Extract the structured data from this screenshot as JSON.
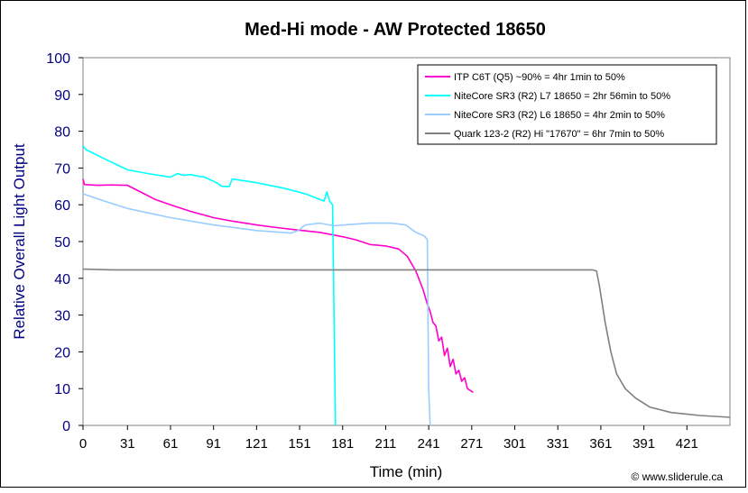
{
  "chart_data": {
    "type": "line",
    "title": "Med-Hi mode - AW Protected 18650",
    "xlabel": "Time (min)",
    "ylabel": "Relative Overall Light Output",
    "xlim": [
      0,
      451
    ],
    "ylim": [
      0,
      100
    ],
    "x_ticks": [
      0,
      31,
      61,
      91,
      121,
      151,
      181,
      211,
      241,
      271,
      301,
      331,
      361,
      391,
      421
    ],
    "y_ticks": [
      0,
      10,
      20,
      30,
      40,
      50,
      60,
      70,
      80,
      90,
      100
    ],
    "grid": false,
    "legend_position": "top-right",
    "copyright": "© www.sliderule.ca",
    "series": [
      {
        "name": "ITP C6T (Q5) ~90% = 4hr 1min to 50%",
        "color": "#ff00cc",
        "points": [
          [
            0,
            67
          ],
          [
            1,
            65.5
          ],
          [
            10,
            65.3
          ],
          [
            20,
            65.4
          ],
          [
            31,
            65.3
          ],
          [
            40,
            63.5
          ],
          [
            50,
            61.5
          ],
          [
            61,
            60
          ],
          [
            75,
            58.2
          ],
          [
            91,
            56.5
          ],
          [
            105,
            55.5
          ],
          [
            121,
            54.5
          ],
          [
            135,
            53.8
          ],
          [
            151,
            53.1
          ],
          [
            165,
            52.5
          ],
          [
            181,
            51.3
          ],
          [
            190,
            50.5
          ],
          [
            200,
            49.2
          ],
          [
            211,
            48.8
          ],
          [
            220,
            48
          ],
          [
            226,
            46
          ],
          [
            232,
            42
          ],
          [
            237,
            37
          ],
          [
            240,
            33
          ],
          [
            242,
            31
          ],
          [
            244,
            28
          ],
          [
            246,
            27
          ],
          [
            248,
            23
          ],
          [
            250,
            24
          ],
          [
            252,
            19
          ],
          [
            254,
            21
          ],
          [
            256,
            16
          ],
          [
            258,
            18
          ],
          [
            260,
            14
          ],
          [
            262,
            15
          ],
          [
            264,
            12
          ],
          [
            266,
            13
          ],
          [
            268,
            10
          ],
          [
            270,
            9.5
          ],
          [
            272,
            9
          ]
        ]
      },
      {
        "name": "NiteCore SR3 (R2) L7 18650 = 2hr 56min to 50%",
        "color": "#00ffff",
        "points": [
          [
            0,
            76
          ],
          [
            2,
            75
          ],
          [
            15,
            72.5
          ],
          [
            31,
            69.5
          ],
          [
            45,
            68.5
          ],
          [
            61,
            67.5
          ],
          [
            66,
            68.5
          ],
          [
            70,
            68
          ],
          [
            75,
            68.2
          ],
          [
            80,
            67.8
          ],
          [
            85,
            67.5
          ],
          [
            93,
            66
          ],
          [
            97,
            65
          ],
          [
            102,
            65
          ],
          [
            104,
            67
          ],
          [
            121,
            66
          ],
          [
            140,
            64.5
          ],
          [
            155,
            63
          ],
          [
            168,
            61
          ],
          [
            170,
            63.5
          ],
          [
            172,
            61
          ],
          [
            174,
            60
          ],
          [
            175,
            30
          ],
          [
            176,
            0
          ]
        ]
      },
      {
        "name": "NiteCore SR3 (R2) L6 18650 = 4hr 2min to 50%",
        "color": "#99ccff",
        "points": [
          [
            0,
            63
          ],
          [
            15,
            61
          ],
          [
            31,
            59
          ],
          [
            61,
            56.5
          ],
          [
            91,
            54.5
          ],
          [
            121,
            53
          ],
          [
            145,
            52.3
          ],
          [
            150,
            53
          ],
          [
            155,
            54.5
          ],
          [
            165,
            55
          ],
          [
            175,
            54.3
          ],
          [
            185,
            54.6
          ],
          [
            200,
            55
          ],
          [
            215,
            55
          ],
          [
            225,
            54.5
          ],
          [
            232,
            52.5
          ],
          [
            238,
            51.5
          ],
          [
            240,
            50.5
          ],
          [
            241,
            10
          ],
          [
            242,
            0
          ]
        ]
      },
      {
        "name": "Quark 123-2 (R2) Hi \"17670\" = 6hr 7min to 50%",
        "color": "#808080",
        "points": [
          [
            0,
            42.5
          ],
          [
            20,
            42.3
          ],
          [
            61,
            42.3
          ],
          [
            121,
            42.3
          ],
          [
            181,
            42.3
          ],
          [
            241,
            42.3
          ],
          [
            301,
            42.3
          ],
          [
            331,
            42.3
          ],
          [
            355,
            42.3
          ],
          [
            358,
            42
          ],
          [
            360,
            38
          ],
          [
            364,
            28
          ],
          [
            368,
            20
          ],
          [
            372,
            14
          ],
          [
            378,
            10
          ],
          [
            385,
            7.5
          ],
          [
            395,
            5
          ],
          [
            410,
            3.5
          ],
          [
            430,
            2.7
          ],
          [
            451,
            2.2
          ]
        ]
      }
    ]
  }
}
